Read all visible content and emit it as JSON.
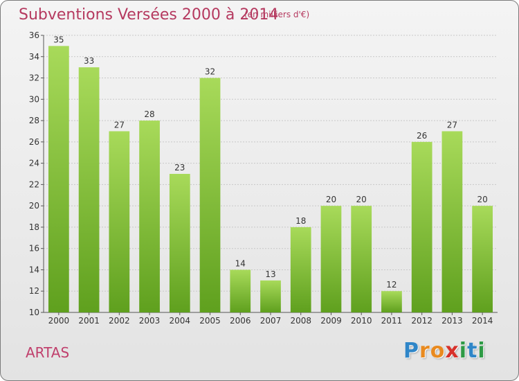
{
  "title": "Subventions Versées 2000 à 2014",
  "subtitle": "(en milliers d'€)",
  "commune": "ARTAS",
  "logo": {
    "letters": [
      {
        "char": "P",
        "color": "#2f86c8"
      },
      {
        "char": "r",
        "color": "#e98a1f"
      },
      {
        "char": "o",
        "color": "#e98a1f"
      },
      {
        "char": "x",
        "color": "#d7312b"
      },
      {
        "char": "i",
        "color": "#2e9a45"
      },
      {
        "char": "t",
        "color": "#2f86c8"
      },
      {
        "char": "i",
        "color": "#2e9a45"
      }
    ]
  },
  "colors": {
    "bar_light": "#a8da5a",
    "bar_dark": "#5fa01e",
    "title": "#b5395f",
    "grid": "#c8c8c8"
  },
  "chart_data": {
    "type": "bar",
    "title": "Subventions Versées 2000 à 2014",
    "unit": "(en milliers d'€)",
    "categories": [
      "2000",
      "2001",
      "2002",
      "2003",
      "2004",
      "2005",
      "2006",
      "2007",
      "2008",
      "2009",
      "2010",
      "2011",
      "2012",
      "2013",
      "2014"
    ],
    "values": [
      35,
      33,
      27,
      28,
      23,
      32,
      14,
      13,
      18,
      20,
      20,
      12,
      26,
      27,
      20
    ],
    "ylim": [
      10,
      36
    ],
    "yticks": [
      10,
      12,
      14,
      16,
      18,
      20,
      22,
      24,
      26,
      28,
      30,
      32,
      34,
      36
    ],
    "grid": true,
    "data_labels": true
  }
}
